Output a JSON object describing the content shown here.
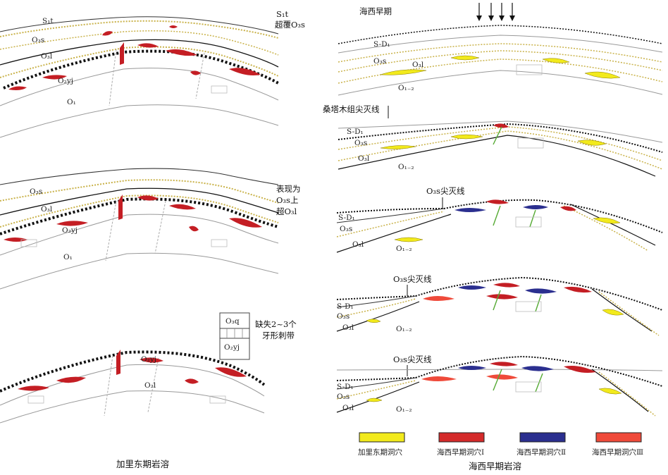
{
  "left_panel": {
    "caption": "加里东期岩溶",
    "section1": {
      "labels": [
        "S₁t",
        "O₃s",
        "O₃l",
        "O₂yj",
        "O₁"
      ],
      "note_line1": "S₁t",
      "note_line2": "超覆O₃s"
    },
    "section2": {
      "labels": [
        "O₃s",
        "O₃l",
        "O₂yj",
        "O₁"
      ],
      "note_line1": "表现为",
      "note_line2": "O₃s上",
      "note_line3": "超O₃l"
    },
    "section3": {
      "labels": [
        "O₂yj",
        "O₂l"
      ],
      "inset_top": "O₃q",
      "inset_bottom": "O₂yj",
      "note_line1": "缺失2~3个",
      "note_line2": "牙形刺带"
    }
  },
  "right_panel": {
    "caption": "海西早期岩溶",
    "section1": {
      "title": "海西早期",
      "labels": [
        "S-D₁",
        "O₃s",
        "O₃l",
        "O₁₋₂"
      ]
    },
    "section2": {
      "note": "桑塔木组尖灭线",
      "labels": [
        "S-D₁",
        "O₃s",
        "O₃l",
        "O₁₋₂"
      ]
    },
    "section3": {
      "note": "O₃s尖灭线",
      "labels": [
        "S-D₁",
        "O₃s",
        "O₃l",
        "O₁₋₂"
      ]
    },
    "section4": {
      "note": "O₃s尖灭线",
      "labels": [
        "S-D₁",
        "O₃s",
        "O₃l",
        "O₁₋₂"
      ]
    },
    "section5": {
      "note": "O₃s尖灭线",
      "labels": [
        "S-D₁",
        "O₃s",
        "O₃l",
        "O₁₋₂"
      ]
    }
  },
  "legend": {
    "items": [
      {
        "label": "加里东期洞穴",
        "color": "#f2ea1c"
      },
      {
        "label": "海西早期洞穴Ⅰ",
        "color": "#d42a2a"
      },
      {
        "label": "海西早期洞穴Ⅱ",
        "color": "#2b2f8f"
      },
      {
        "label": "海西早期洞穴Ⅲ",
        "color": "#ef4a3a"
      }
    ]
  },
  "colors": {
    "cave_caledonian": "#f2ea1c",
    "cave_hercynian_1": "#c41e24",
    "cave_hercynian_2": "#2b2f8f",
    "cave_hercynian_3": "#ef4a3a",
    "unconformity": "#111111",
    "strata_line": "#333333",
    "thin_line": "#999999"
  }
}
